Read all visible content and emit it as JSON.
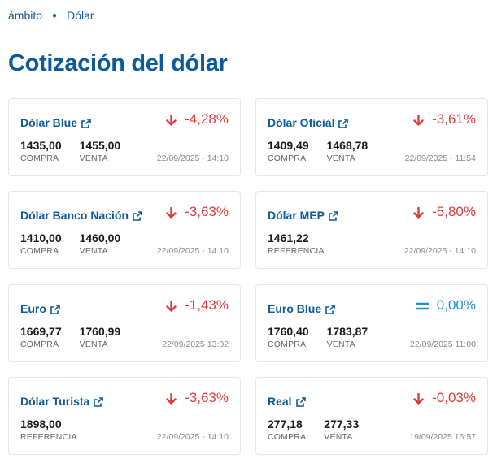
{
  "breadcrumb": {
    "home": "ámbito",
    "current": "Dólar"
  },
  "title": "Cotización del dólar",
  "colors": {
    "brand": "#0c5a9a",
    "down": "#e03c3c",
    "equal": "#1e8fd0"
  },
  "cards": [
    {
      "name": "Dólar Blue",
      "direction": "down",
      "change": "-4,28%",
      "v1": "1435,00",
      "l1": "COMPRA",
      "v2": "1455,00",
      "l2": "VENTA",
      "date": "22/09/2025 - 14:10"
    },
    {
      "name": "Dólar Oficial",
      "direction": "down",
      "change": "-3,61%",
      "v1": "1409,49",
      "l1": "COMPRA",
      "v2": "1468,78",
      "l2": "VENTA",
      "date": "22/09/2025 - 11:54"
    },
    {
      "name": "Dólar Banco Nación",
      "direction": "down",
      "change": "-3,63%",
      "v1": "1410,00",
      "l1": "COMPRA",
      "v2": "1460,00",
      "l2": "VENTA",
      "date": "22/09/2025 - 14:10"
    },
    {
      "name": "Dólar MEP",
      "direction": "down",
      "change": "-5,80%",
      "v1": "1461,22",
      "l1": "REFERENCIA",
      "date": "22/09/2025 - 14:10"
    },
    {
      "name": "Euro",
      "direction": "down",
      "change": "-1,43%",
      "v1": "1669,77",
      "l1": "COMPRA",
      "v2": "1760,99",
      "l2": "VENTA",
      "date": "22/09/2025 13:02"
    },
    {
      "name": "Euro Blue",
      "direction": "equal",
      "change": "0,00%",
      "v1": "1760,40",
      "l1": "COMPRA",
      "v2": "1783,87",
      "l2": "VENTA",
      "date": "22/09/2025 11:00"
    },
    {
      "name": "Dólar Turista",
      "direction": "down",
      "change": "-3,63%",
      "v1": "1898,00",
      "l1": "REFERENCIA",
      "date": "22/09/2025 - 14:10"
    },
    {
      "name": "Real",
      "direction": "down",
      "change": "-0,03%",
      "v1": "277,18",
      "l1": "COMPRA",
      "v2": "277,33",
      "l2": "VENTA",
      "date": "19/09/2025 16:57"
    }
  ]
}
